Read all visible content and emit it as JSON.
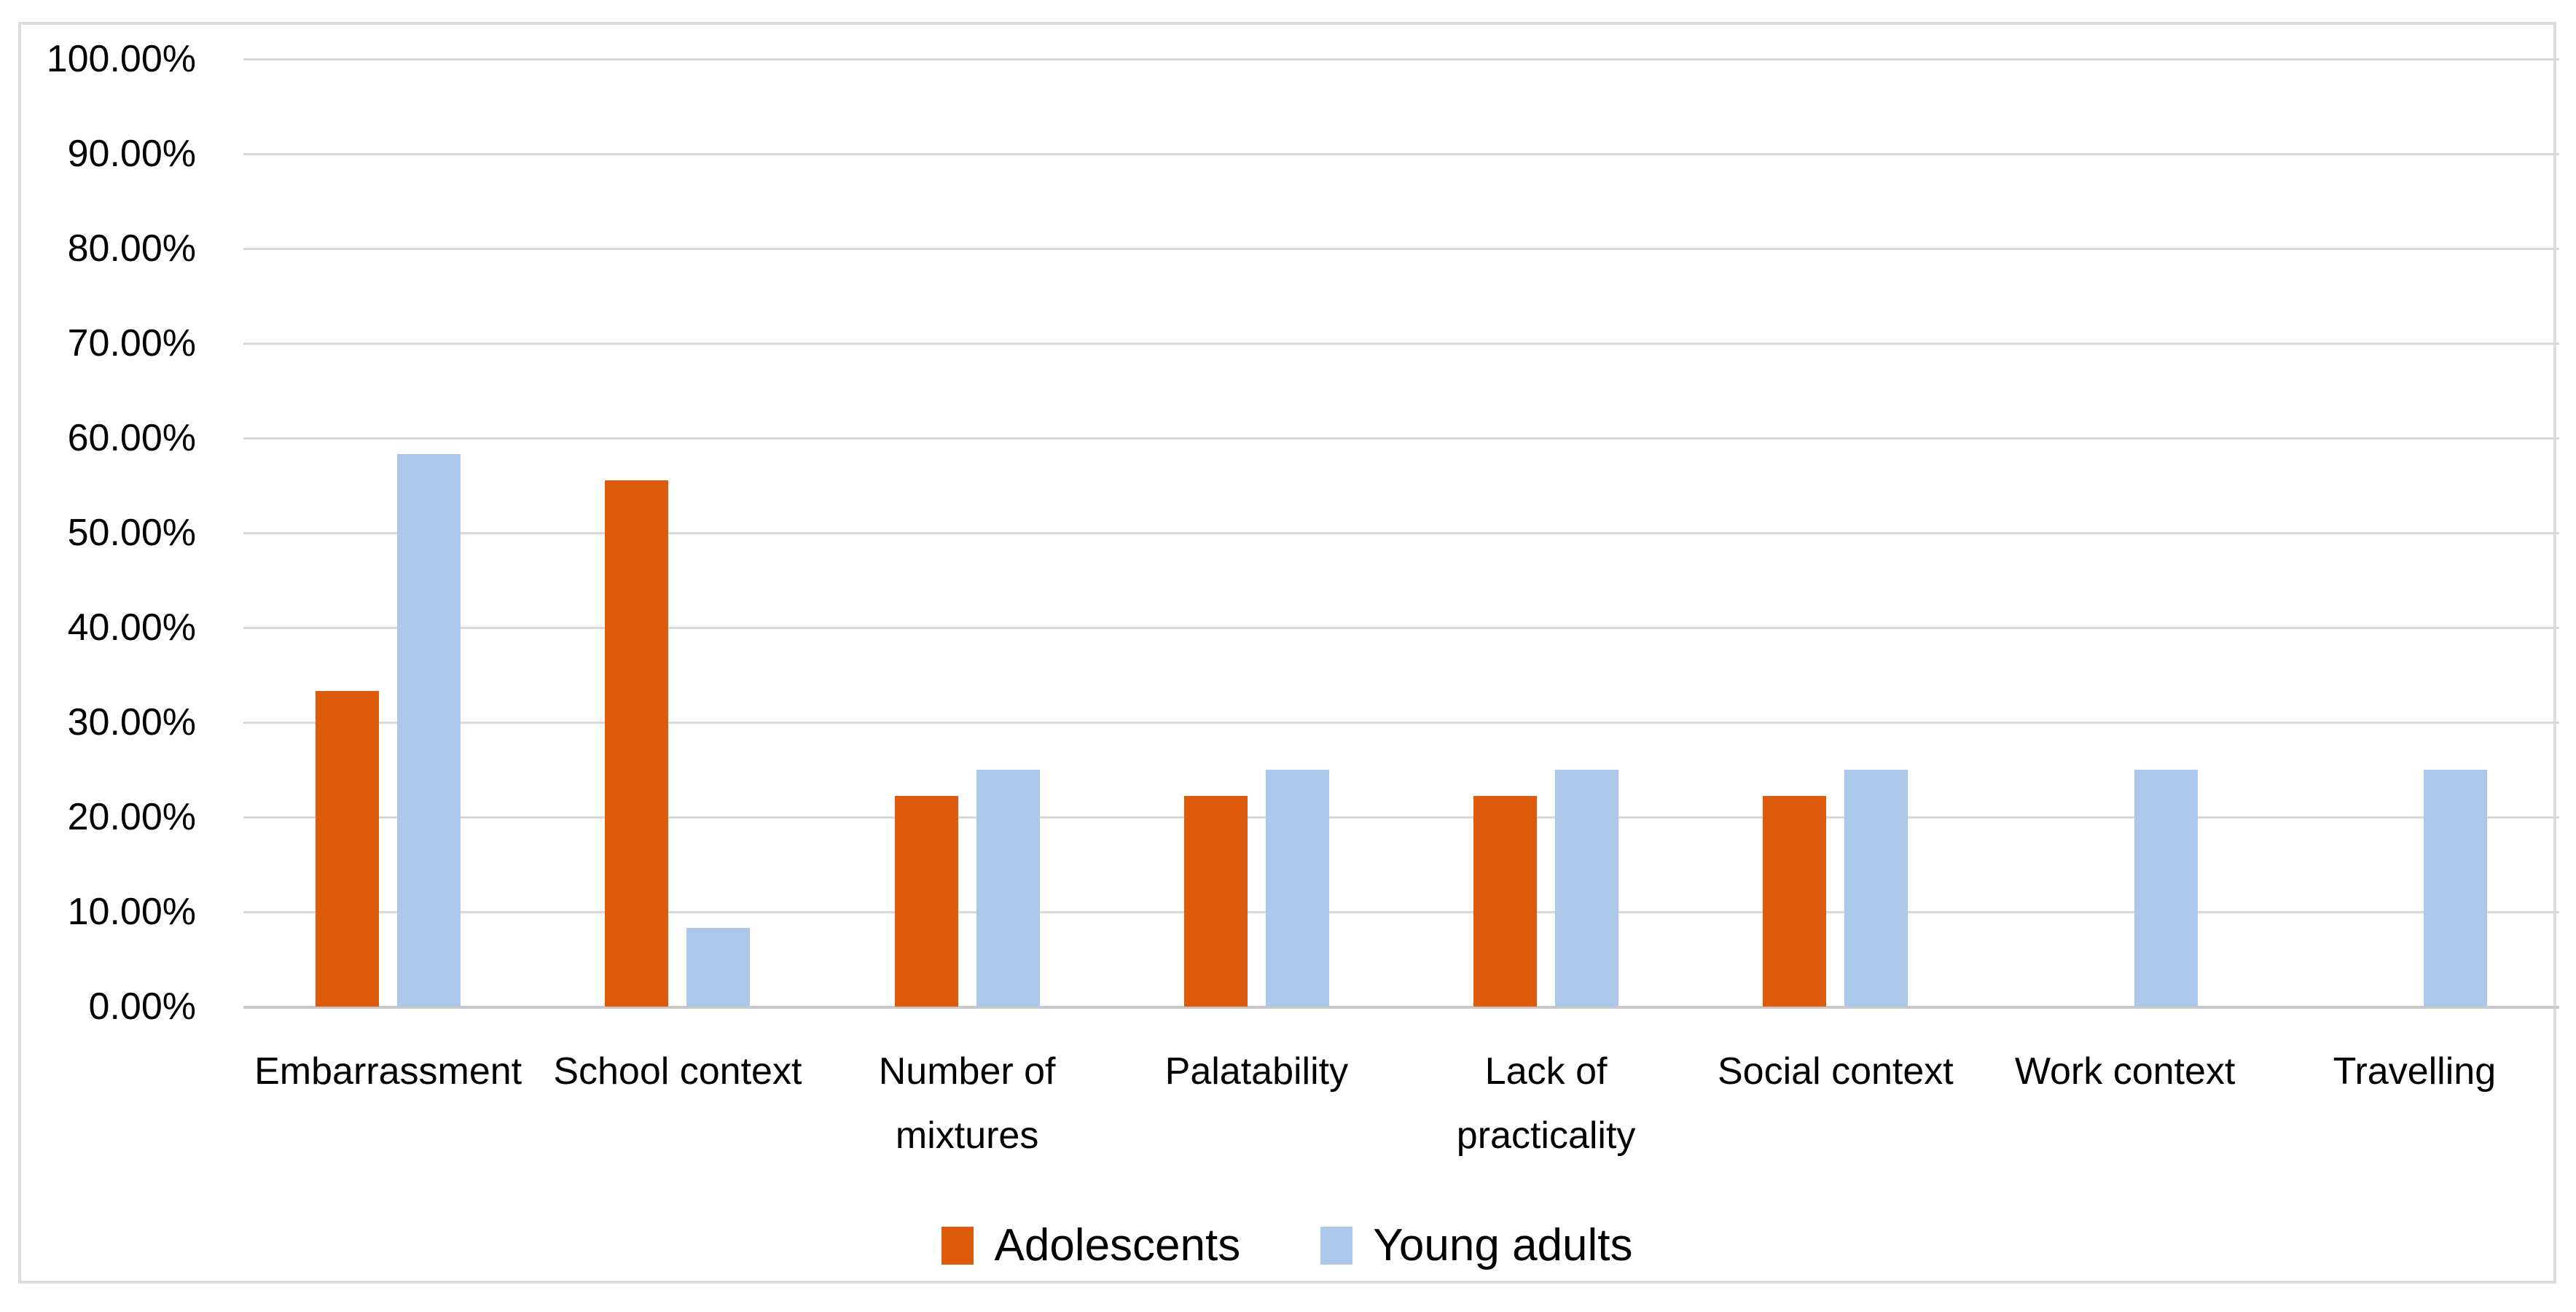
{
  "chart_data": {
    "type": "bar",
    "title": "",
    "xlabel": "",
    "ylabel": "",
    "categories": [
      "Embarrassment",
      "School context",
      "Number of\nmixtures",
      "Palatability",
      "Lack of\npracticality",
      "Social context",
      "Work context",
      "Travelling"
    ],
    "series": [
      {
        "name": "Adolescents",
        "color": "#dd5b0b",
        "values": [
          33.33,
          55.56,
          22.22,
          22.22,
          22.22,
          22.22,
          0,
          0
        ]
      },
      {
        "name": "Young adults",
        "color": "#abc7e9",
        "values": [
          58.33,
          8.33,
          25.0,
          25.0,
          25.0,
          25.0,
          25.0,
          25.0
        ]
      }
    ],
    "y_axis": {
      "min": 0,
      "max": 100,
      "step": 10,
      "tick_labels": [
        "0.00%",
        "10.00%",
        "20.00%",
        "30.00%",
        "40.00%",
        "50.00%",
        "60.00%",
        "70.00%",
        "80.00%",
        "90.00%",
        "100.00%"
      ]
    },
    "grid": true,
    "legend_position": "bottom",
    "legend": [
      "Adolescents",
      "Young adults"
    ],
    "colors": {
      "background": "#ffffff",
      "gridline": "#d9d9d9",
      "axis_line": "#c9c9c9",
      "frame_border": "#dcdcdc",
      "text": "#000000"
    }
  }
}
